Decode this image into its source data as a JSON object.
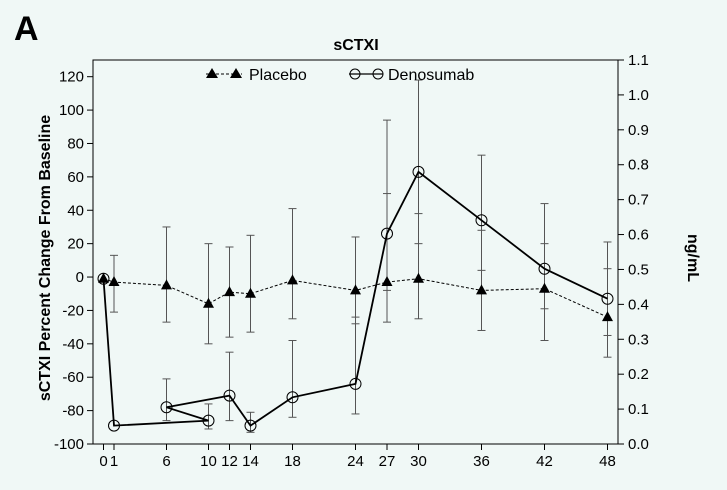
{
  "panel_label": "A",
  "chart_data": {
    "type": "line",
    "title": "sCTXI",
    "xlabel": "",
    "ylabel": "sCTXI Percent Change From Baseline",
    "y2label": "ng/mL",
    "xlim": [
      -1,
      49
    ],
    "ylim": [
      -100,
      130
    ],
    "y2lim": [
      0.0,
      1.1
    ],
    "x_ticks": [
      0,
      1,
      6,
      10,
      12,
      14,
      18,
      24,
      27,
      30,
      36,
      42,
      48
    ],
    "y_ticks": [
      -100,
      -80,
      -60,
      -40,
      -20,
      0,
      20,
      40,
      60,
      80,
      100,
      120
    ],
    "y2_ticks": [
      "0.0",
      "0.1",
      "0.2",
      "0.3",
      "0.4",
      "0.5",
      "0.6",
      "0.7",
      "0.8",
      "0.9",
      "1.0",
      "1.1"
    ],
    "legend_placement": "top-center",
    "grid": false,
    "series": [
      {
        "name": "Placebo",
        "marker": "triangle",
        "line_style": "dashed",
        "x": [
          0,
          1,
          6,
          10,
          12,
          14,
          18,
          24,
          27,
          30,
          36,
          42,
          48
        ],
        "y": [
          -1,
          -3,
          -5,
          -16,
          -9,
          -10,
          -2,
          -8,
          -3,
          -1,
          -8,
          -7,
          -24
        ],
        "err_low": [
          null,
          -21,
          -27,
          -40,
          -36,
          -33,
          -25,
          -28,
          -27,
          -25,
          -32,
          -38,
          -48
        ],
        "err_high": [
          null,
          13,
          30,
          20,
          18,
          25,
          41,
          24,
          50,
          38,
          28,
          20,
          5
        ]
      },
      {
        "name": "Denosumab",
        "marker": "circle",
        "line_style": "solid",
        "x": [
          0,
          1,
          10,
          6,
          12,
          14,
          18,
          24,
          27,
          30,
          36,
          42,
          48
        ],
        "y": [
          -1,
          -89,
          -86,
          -78,
          -71,
          -89,
          -72,
          -64,
          26,
          63,
          34,
          5,
          -13
        ],
        "err_low": [
          null,
          null,
          -91,
          -86,
          -86,
          -93,
          -84,
          -82,
          -8,
          20,
          4,
          -19,
          -35
        ],
        "err_high": [
          null,
          null,
          -76,
          -61,
          -45,
          -81,
          -38,
          -24,
          94,
          118,
          73,
          44,
          21
        ]
      }
    ]
  }
}
